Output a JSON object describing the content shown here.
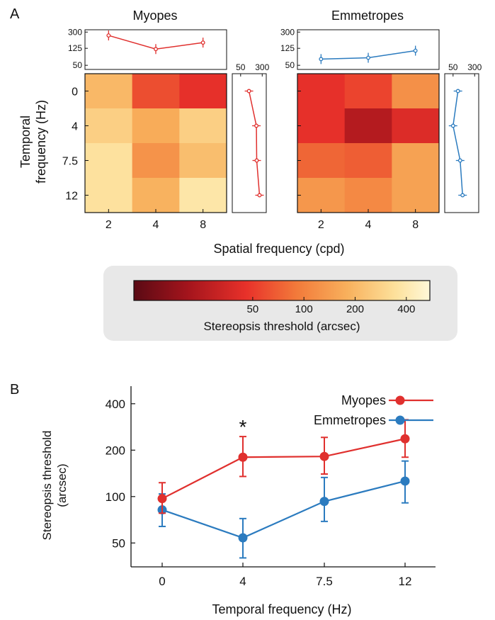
{
  "panels": {
    "a_label": "A",
    "b_label": "B"
  },
  "colors": {
    "myopes": "#e0302e",
    "emmetropes": "#2b7bbf"
  },
  "chart_data": [
    {
      "type": "heatmap",
      "id": "myopes-heatmap",
      "title": "Myopes",
      "columns": [
        "2",
        "4",
        "8"
      ],
      "rows": [
        "0",
        "4",
        "7.5",
        "12"
      ],
      "values_arcsec": [
        [
          200,
          60,
          45
        ],
        [
          270,
          170,
          270
        ],
        [
          350,
          125,
          215
        ],
        [
          350,
          185,
          380
        ]
      ],
      "top_marginal": {
        "ticks": [
          "300",
          "125",
          "50"
        ],
        "values": [
          250,
          120,
          170
        ]
      },
      "side_marginal": {
        "ticks": [
          "50",
          "300"
        ],
        "values": [
          100,
          185,
          190,
          240
        ]
      }
    },
    {
      "type": "heatmap",
      "id": "emmetropes-heatmap",
      "title": "Emmetropes",
      "columns": [
        "2",
        "4",
        "8"
      ],
      "rows": [
        "0",
        "4",
        "7.5",
        "12"
      ],
      "values_arcsec": [
        [
          45,
          55,
          120
        ],
        [
          45,
          25,
          40
        ],
        [
          75,
          70,
          150
        ],
        [
          130,
          110,
          150
        ]
      ],
      "top_marginal": {
        "ticks": [
          "300",
          "125",
          "50"
        ],
        "values": [
          70,
          75,
          110
        ]
      },
      "side_marginal": {
        "ticks": [
          "50",
          "300"
        ],
        "values": [
          75,
          50,
          90,
          110
        ]
      }
    },
    {
      "type": "colorbar",
      "id": "colorbar",
      "ticks": [
        "50",
        "100",
        "200",
        "400"
      ],
      "label": "Stereopsis threshold (arcsec)"
    },
    {
      "type": "line",
      "id": "panel-b",
      "x": [
        "0",
        "4",
        "7.5",
        "12"
      ],
      "series": [
        {
          "name": "Myopes",
          "values": [
            97,
            180,
            182,
            237
          ],
          "err_lo": [
            78,
            135,
            140,
            180
          ],
          "err_hi": [
            123,
            245,
            242,
            315
          ]
        },
        {
          "name": "Emmetropes",
          "values": [
            82,
            54,
            93,
            126
          ],
          "err_lo": [
            64,
            40,
            69,
            91
          ],
          "err_hi": [
            104,
            72,
            133,
            170
          ]
        }
      ],
      "xlabel": "Temporal frequency (Hz)",
      "ylabel": [
        "Stereopsis threshold",
        "(arcsec)"
      ],
      "yticks": [
        "50",
        "100",
        "200",
        "400"
      ],
      "ylim": [
        35,
        520
      ],
      "yscale": "log",
      "annotation": "*",
      "legend": "top-right"
    }
  ],
  "heatmap_axes": {
    "ylabel": [
      "Temporal",
      "frequency (Hz)"
    ],
    "xlabel": "Spatial frequency (cpd)"
  }
}
